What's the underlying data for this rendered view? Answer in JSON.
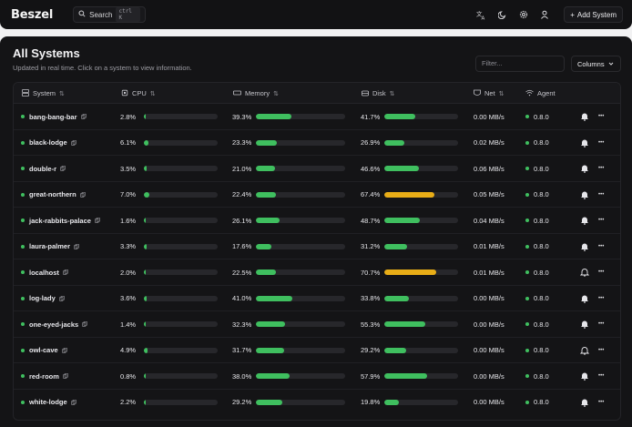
{
  "app": {
    "title": "Beszel"
  },
  "header": {
    "search_label": "Search",
    "search_kbd": "ctrl K",
    "add_system_label": "Add System",
    "icons": [
      "language-icon",
      "theme-moon-icon",
      "settings-gear-icon",
      "user-icon",
      "plus-icon"
    ]
  },
  "page": {
    "title": "All Systems",
    "subtitle": "Updated in real time. Click on a system to view information.",
    "filter_placeholder": "Filter...",
    "columns_label": "Columns"
  },
  "table": {
    "headers": {
      "system": "System",
      "cpu": "CPU",
      "memory": "Memory",
      "disk": "Disk",
      "net": "Net",
      "agent": "Agent"
    },
    "colors": {
      "ok": "#3fbf5f",
      "warn": "#e8ad17",
      "track": "#27272b"
    },
    "rows": [
      {
        "name": "bang-bang-bar",
        "cpu": "2.8%",
        "cpu_v": 2.8,
        "mem": "39.3%",
        "mem_v": 39.3,
        "disk": "41.7%",
        "disk_v": 41.7,
        "net": "0.00 MB/s",
        "agent": "0.8.0",
        "alert": true
      },
      {
        "name": "black-lodge",
        "cpu": "6.1%",
        "cpu_v": 6.1,
        "mem": "23.3%",
        "mem_v": 23.3,
        "disk": "26.9%",
        "disk_v": 26.9,
        "net": "0.02 MB/s",
        "agent": "0.8.0",
        "alert": true
      },
      {
        "name": "double-r",
        "cpu": "3.5%",
        "cpu_v": 3.5,
        "mem": "21.0%",
        "mem_v": 21.0,
        "disk": "46.6%",
        "disk_v": 46.6,
        "net": "0.06 MB/s",
        "agent": "0.8.0",
        "alert": true
      },
      {
        "name": "great-northern",
        "cpu": "7.0%",
        "cpu_v": 7.0,
        "mem": "22.4%",
        "mem_v": 22.4,
        "disk": "67.4%",
        "disk_v": 67.4,
        "net": "0.05 MB/s",
        "agent": "0.8.0",
        "alert": true
      },
      {
        "name": "jack-rabbits-palace",
        "cpu": "1.6%",
        "cpu_v": 1.6,
        "mem": "26.1%",
        "mem_v": 26.1,
        "disk": "48.7%",
        "disk_v": 48.7,
        "net": "0.04 MB/s",
        "agent": "0.8.0",
        "alert": true
      },
      {
        "name": "laura-palmer",
        "cpu": "3.3%",
        "cpu_v": 3.3,
        "mem": "17.6%",
        "mem_v": 17.6,
        "disk": "31.2%",
        "disk_v": 31.2,
        "net": "0.01 MB/s",
        "agent": "0.8.0",
        "alert": true
      },
      {
        "name": "localhost",
        "cpu": "2.0%",
        "cpu_v": 2.0,
        "mem": "22.5%",
        "mem_v": 22.5,
        "disk": "70.7%",
        "disk_v": 70.7,
        "net": "0.01 MB/s",
        "agent": "0.8.0",
        "alert": false
      },
      {
        "name": "log-lady",
        "cpu": "3.6%",
        "cpu_v": 3.6,
        "mem": "41.0%",
        "mem_v": 41.0,
        "disk": "33.8%",
        "disk_v": 33.8,
        "net": "0.00 MB/s",
        "agent": "0.8.0",
        "alert": true
      },
      {
        "name": "one-eyed-jacks",
        "cpu": "1.4%",
        "cpu_v": 1.4,
        "mem": "32.3%",
        "mem_v": 32.3,
        "disk": "55.3%",
        "disk_v": 55.3,
        "net": "0.00 MB/s",
        "agent": "0.8.0",
        "alert": true
      },
      {
        "name": "owl-cave",
        "cpu": "4.9%",
        "cpu_v": 4.9,
        "mem": "31.7%",
        "mem_v": 31.7,
        "disk": "29.2%",
        "disk_v": 29.2,
        "net": "0.00 MB/s",
        "agent": "0.8.0",
        "alert": false
      },
      {
        "name": "red-room",
        "cpu": "0.8%",
        "cpu_v": 0.8,
        "mem": "38.0%",
        "mem_v": 38.0,
        "disk": "57.9%",
        "disk_v": 57.9,
        "net": "0.00 MB/s",
        "agent": "0.8.0",
        "alert": true
      },
      {
        "name": "white-lodge",
        "cpu": "2.2%",
        "cpu_v": 2.2,
        "mem": "29.2%",
        "mem_v": 29.2,
        "disk": "19.8%",
        "disk_v": 19.8,
        "net": "0.00 MB/s",
        "agent": "0.8.0",
        "alert": true
      }
    ]
  }
}
